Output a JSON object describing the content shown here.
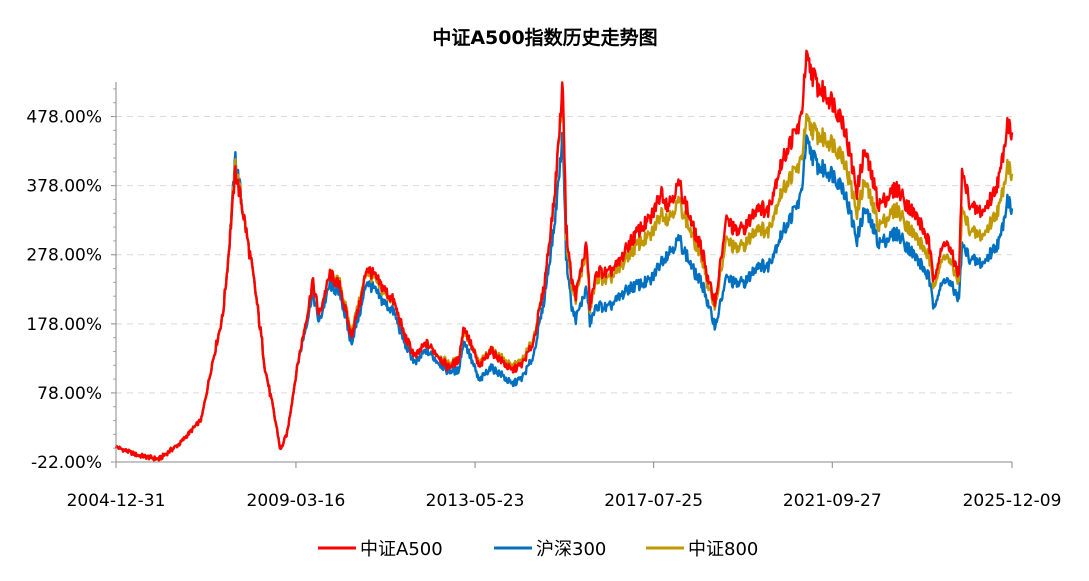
{
  "chart_data": {
    "type": "line",
    "title": "中证A500指数历史走势图",
    "xlabel": "",
    "ylabel": "",
    "ylim": [
      -22,
      528
    ],
    "y_ticks": [
      "-22.00%",
      "78.00%",
      "178.00%",
      "278.00%",
      "378.00%",
      "478.00%"
    ],
    "y_tick_values": [
      -22,
      78,
      178,
      278,
      378,
      478
    ],
    "x_range": [
      "2004-12-31",
      "2025-12-09"
    ],
    "x_ticks": [
      "2004-12-31",
      "2009-03-16",
      "2013-05-23",
      "2017-07-25",
      "2021-09-27",
      "2025-12-09"
    ],
    "grid": true,
    "legend_position": "bottom",
    "x": [
      "2004-12-31",
      "2005-06-30",
      "2005-12-31",
      "2006-06-30",
      "2006-12-31",
      "2007-03-31",
      "2007-06-30",
      "2007-08-15",
      "2007-10-16",
      "2007-12-31",
      "2008-03-31",
      "2008-06-30",
      "2008-09-30",
      "2008-11-04",
      "2008-12-31",
      "2009-03-31",
      "2009-06-30",
      "2009-08-04",
      "2009-09-30",
      "2009-12-31",
      "2010-03-31",
      "2010-06-30",
      "2010-09-30",
      "2010-11-08",
      "2010-12-31",
      "2011-03-31",
      "2011-06-30",
      "2011-09-30",
      "2011-12-31",
      "2012-03-31",
      "2012-06-30",
      "2012-09-30",
      "2012-12-31",
      "2013-02-18",
      "2013-06-27",
      "2013-09-30",
      "2013-12-31",
      "2014-03-31",
      "2014-06-30",
      "2014-09-30",
      "2014-12-31",
      "2015-03-31",
      "2015-06-12",
      "2015-07-08",
      "2015-08-26",
      "2015-09-30",
      "2015-12-31",
      "2016-01-28",
      "2016-03-31",
      "2016-06-30",
      "2016-09-30",
      "2016-12-31",
      "2017-03-31",
      "2017-06-30",
      "2017-09-30",
      "2017-11-22",
      "2018-02-28",
      "2018-06-30",
      "2018-09-30",
      "2018-10-31",
      "2019-01-03",
      "2019-04-08",
      "2019-06-30",
      "2019-09-30",
      "2019-12-31",
      "2020-03-23",
      "2020-06-30",
      "2020-09-30",
      "2020-12-31",
      "2021-02-18",
      "2021-05-31",
      "2021-07-31",
      "2021-09-30",
      "2021-12-31",
      "2022-04-26",
      "2022-06-30",
      "2022-10-31",
      "2022-12-31",
      "2023-03-31",
      "2023-06-30",
      "2023-09-30",
      "2023-12-31",
      "2024-02-05",
      "2024-05-20",
      "2024-09-13",
      "2024-10-08",
      "2024-12-31",
      "2025-04-08",
      "2025-06-30",
      "2025-08-31",
      "2025-10-31",
      "2025-12-09"
    ],
    "series": [
      {
        "name": "中证A500",
        "color": "#ff0000",
        "values": [
          0,
          -12,
          -18,
          5,
          40,
          120,
          190,
          270,
          400,
          330,
          230,
          110,
          30,
          -5,
          20,
          120,
          200,
          240,
          190,
          250,
          230,
          160,
          220,
          260,
          250,
          230,
          210,
          160,
          130,
          150,
          135,
          115,
          125,
          175,
          115,
          140,
          125,
          110,
          120,
          150,
          230,
          360,
          530,
          320,
          240,
          220,
          295,
          205,
          255,
          250,
          265,
          295,
          315,
          330,
          370,
          350,
          380,
          315,
          275,
          240,
          210,
          330,
          310,
          320,
          350,
          340,
          400,
          440,
          470,
          560,
          520,
          510,
          500,
          470,
          370,
          430,
          350,
          360,
          375,
          350,
          330,
          295,
          245,
          300,
          250,
          395,
          345,
          340,
          365,
          395,
          470,
          455
        ]
      },
      {
        "name": "沪深300",
        "color": "#0070c0",
        "values": [
          0,
          -12,
          -18,
          5,
          40,
          120,
          190,
          270,
          420,
          330,
          230,
          110,
          30,
          -5,
          20,
          120,
          190,
          225,
          180,
          235,
          220,
          150,
          205,
          240,
          230,
          210,
          195,
          150,
          120,
          140,
          125,
          110,
          110,
          155,
          95,
          115,
          105,
          90,
          100,
          130,
          210,
          320,
          455,
          280,
          200,
          185,
          230,
          180,
          205,
          200,
          215,
          230,
          235,
          240,
          270,
          280,
          300,
          255,
          230,
          205,
          175,
          245,
          235,
          240,
          265,
          260,
          300,
          330,
          360,
          440,
          405,
          400,
          395,
          375,
          300,
          345,
          295,
          300,
          310,
          290,
          270,
          245,
          205,
          245,
          215,
          290,
          270,
          265,
          285,
          300,
          360,
          345
        ]
      },
      {
        "name": "中证800",
        "color": "#c09900",
        "values": [
          0,
          -12,
          -18,
          5,
          40,
          120,
          190,
          270,
          410,
          330,
          230,
          110,
          30,
          -5,
          20,
          120,
          200,
          240,
          190,
          250,
          235,
          165,
          225,
          255,
          245,
          225,
          210,
          160,
          130,
          150,
          135,
          120,
          125,
          170,
          120,
          140,
          130,
          115,
          125,
          155,
          230,
          360,
          520,
          310,
          230,
          215,
          285,
          200,
          245,
          240,
          255,
          280,
          295,
          305,
          340,
          330,
          355,
          300,
          265,
          230,
          205,
          300,
          285,
          295,
          320,
          310,
          360,
          390,
          410,
          470,
          450,
          445,
          440,
          420,
          340,
          385,
          320,
          330,
          345,
          320,
          300,
          275,
          235,
          280,
          240,
          340,
          310,
          305,
          330,
          350,
          410,
          395
        ]
      }
    ]
  }
}
